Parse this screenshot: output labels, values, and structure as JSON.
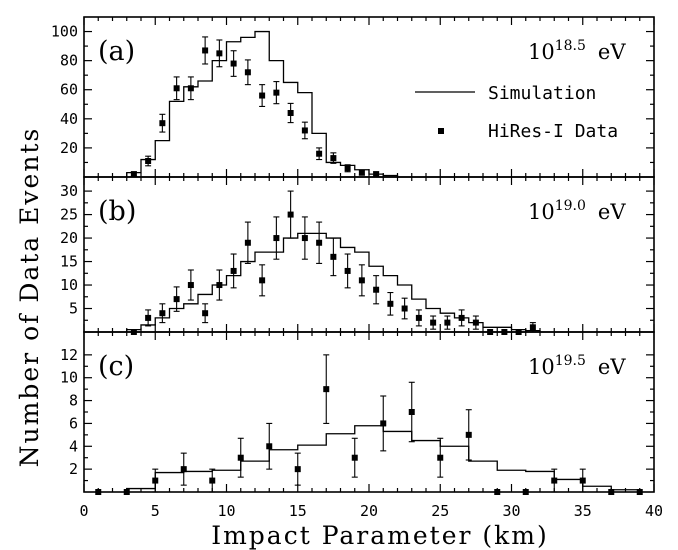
{
  "chart_data": {
    "type": "bar",
    "xlabel": "Impact Parameter (km)",
    "ylabel": "Number of Data Events",
    "xlim": [
      0,
      40
    ],
    "x_ticks": [
      0,
      5,
      10,
      15,
      20,
      25,
      30,
      35,
      40
    ],
    "legend": {
      "simulation": "Simulation",
      "data": "HiRes-I Data",
      "placement": "top-right of panel (a)"
    },
    "panels": [
      {
        "label": "(a)",
        "energy_base": "10",
        "energy_exp": "18.5",
        "energy_unit": "eV",
        "ylim": [
          0,
          110
        ],
        "y_ticks": [
          20,
          40,
          60,
          80,
          100
        ],
        "simulation": {
          "bin_edges": [
            3,
            4,
            5,
            6,
            7,
            8,
            9,
            10,
            11,
            12,
            13,
            14,
            15,
            16,
            17,
            18,
            19,
            20,
            21,
            22
          ],
          "values": [
            3,
            12,
            25,
            52,
            62,
            66,
            80,
            93,
            96,
            100,
            80,
            65,
            58,
            30,
            10,
            8,
            5,
            2,
            1
          ]
        },
        "data": {
          "x": [
            3.5,
            4.5,
            5.5,
            6.5,
            7.5,
            8.5,
            9.5,
            10.5,
            11.5,
            12.5,
            13.5,
            14.5,
            15.5,
            16.5,
            17.5,
            18.5,
            19.5,
            20.5
          ],
          "y": [
            2,
            11,
            37,
            61,
            61,
            87,
            85,
            78,
            72,
            56,
            58,
            44,
            32,
            16,
            13,
            6,
            3,
            2
          ],
          "err": [
            1.4,
            3.3,
            6.1,
            7.8,
            7.8,
            9.3,
            9.2,
            8.8,
            8.5,
            7.5,
            7.6,
            6.6,
            5.7,
            4.0,
            3.6,
            2.4,
            1.7,
            1.4
          ]
        }
      },
      {
        "label": "(b)",
        "energy_base": "10",
        "energy_exp": "19.0",
        "energy_unit": "eV",
        "ylim": [
          0,
          33
        ],
        "y_ticks": [
          5,
          10,
          15,
          20,
          25,
          30
        ],
        "simulation": {
          "bin_edges": [
            3,
            4,
            5,
            6,
            7,
            8,
            9,
            10,
            11,
            12,
            13,
            14,
            15,
            16,
            17,
            18,
            19,
            20,
            21,
            22,
            23,
            24,
            25,
            26,
            27,
            28,
            29,
            30,
            31,
            32
          ],
          "values": [
            0.5,
            1.5,
            3,
            5,
            6,
            8,
            10,
            12,
            15,
            17,
            17,
            20,
            21,
            21,
            20,
            18,
            17,
            14,
            12,
            10,
            7,
            5,
            4,
            3,
            2,
            1,
            1,
            0.5,
            0.3
          ]
        },
        "data": {
          "x": [
            3.5,
            4.5,
            5.5,
            6.5,
            7.5,
            8.5,
            9.5,
            10.5,
            11.5,
            12.5,
            13.5,
            14.5,
            15.5,
            16.5,
            17.5,
            18.5,
            19.5,
            20.5,
            21.5,
            22.5,
            23.5,
            24.5,
            25.5,
            26.5,
            27.5,
            28.5,
            29.5,
            30.5,
            31.5
          ],
          "y": [
            0,
            3,
            4,
            7,
            10,
            4,
            10,
            13,
            19,
            11,
            20,
            25,
            20,
            19,
            16,
            13,
            11,
            9,
            6,
            5,
            3,
            2,
            2,
            3,
            2,
            0,
            0,
            0,
            1
          ],
          "err": [
            0,
            1.7,
            2.0,
            2.6,
            3.2,
            2.0,
            3.2,
            3.6,
            4.4,
            3.3,
            4.5,
            5.0,
            4.5,
            4.4,
            4.0,
            3.6,
            3.3,
            3.0,
            2.4,
            2.2,
            1.7,
            1.4,
            1.4,
            1.7,
            1.4,
            0,
            0,
            0,
            1.0
          ]
        }
      },
      {
        "label": "(c)",
        "energy_base": "10",
        "energy_exp": "19.5",
        "energy_unit": "eV",
        "ylim": [
          0,
          14
        ],
        "y_ticks": [
          2,
          4,
          6,
          8,
          10,
          12
        ],
        "simulation": {
          "bin_edges": [
            3,
            5,
            7,
            9,
            11,
            13,
            15,
            17,
            19,
            21,
            23,
            25,
            27,
            29,
            31,
            33,
            35,
            37,
            39
          ],
          "values": [
            0.3,
            1.7,
            1.8,
            1.9,
            2.7,
            3.7,
            4.1,
            5.1,
            5.8,
            5.3,
            4.5,
            4.0,
            2.7,
            1.9,
            1.8,
            1.1,
            0.5,
            0.2
          ]
        },
        "data": {
          "x": [
            1,
            3,
            5,
            7,
            9,
            11,
            13,
            15,
            17,
            19,
            21,
            23,
            25,
            27,
            29,
            31,
            33,
            35,
            37,
            39
          ],
          "y": [
            0,
            0,
            1,
            2,
            1,
            3,
            4,
            2,
            9,
            3,
            6,
            7,
            3,
            5,
            0,
            0,
            1,
            1,
            0,
            0
          ],
          "err": [
            0,
            0,
            1.0,
            1.4,
            1.0,
            1.7,
            2.0,
            1.4,
            3.0,
            1.7,
            2.4,
            2.6,
            1.7,
            2.2,
            0,
            0,
            1.0,
            1.0,
            0,
            0
          ]
        }
      }
    ]
  }
}
